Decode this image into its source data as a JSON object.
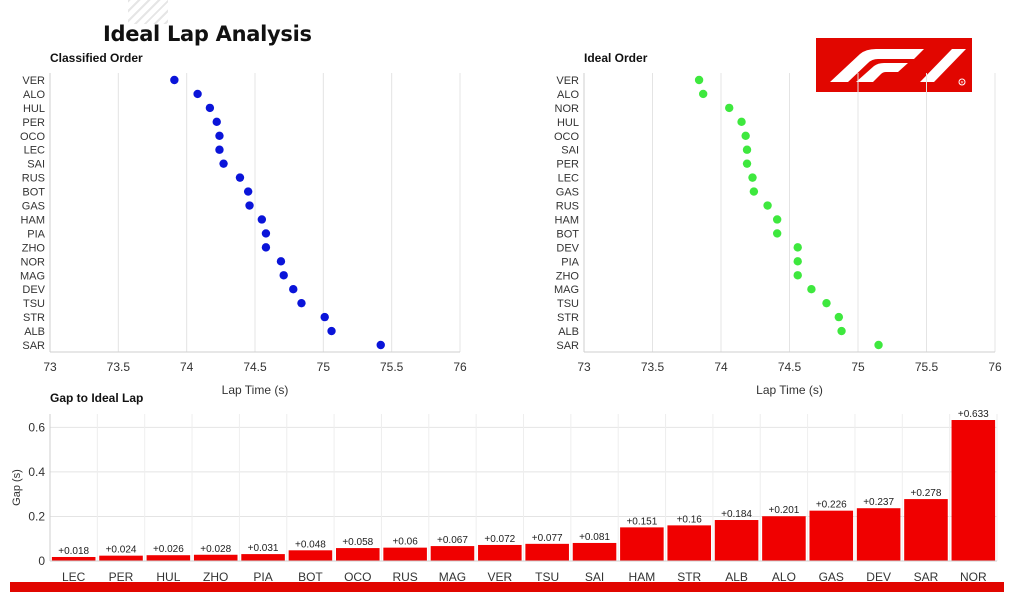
{
  "page": {
    "title": "Ideal Lap Analysis"
  },
  "colors": {
    "classified_dots": "#0a14d9",
    "ideal_dots": "#3ee83e",
    "bars": "#f00000",
    "accent": "#e10600"
  },
  "logo": {
    "icon": "f1-logo-icon"
  },
  "chart_data": [
    {
      "id": "classified",
      "type": "scatter",
      "title": "Classified Order",
      "xlabel": "Lap Time (s)",
      "ylabel": "",
      "xlim": [
        73,
        76
      ],
      "xticks": [
        "73",
        "73.5",
        "74",
        "74.5",
        "75",
        "75.5",
        "76"
      ],
      "grid": true,
      "categories": [
        "VER",
        "ALO",
        "HUL",
        "PER",
        "OCO",
        "LEC",
        "SAI",
        "RUS",
        "BOT",
        "GAS",
        "HAM",
        "PIA",
        "ZHO",
        "NOR",
        "MAG",
        "DEV",
        "TSU",
        "STR",
        "ALB",
        "SAR"
      ],
      "values": [
        73.91,
        74.08,
        74.17,
        74.22,
        74.24,
        74.24,
        74.27,
        74.39,
        74.45,
        74.46,
        74.55,
        74.58,
        74.58,
        74.69,
        74.71,
        74.78,
        74.84,
        75.01,
        75.06,
        75.42
      ]
    },
    {
      "id": "ideal",
      "type": "scatter",
      "title": "Ideal Order",
      "xlabel": "Lap Time (s)",
      "ylabel": "",
      "xlim": [
        73,
        76
      ],
      "xticks": [
        "73",
        "73.5",
        "74",
        "74.5",
        "75",
        "75.5",
        "76"
      ],
      "grid": true,
      "categories": [
        "VER",
        "ALO",
        "NOR",
        "HUL",
        "OCO",
        "SAI",
        "PER",
        "LEC",
        "GAS",
        "RUS",
        "HAM",
        "BOT",
        "DEV",
        "PIA",
        "ZHO",
        "MAG",
        "TSU",
        "STR",
        "ALB",
        "SAR"
      ],
      "values": [
        73.84,
        73.87,
        74.06,
        74.15,
        74.18,
        74.19,
        74.19,
        74.23,
        74.24,
        74.34,
        74.41,
        74.41,
        74.56,
        74.56,
        74.56,
        74.66,
        74.77,
        74.86,
        74.88,
        75.15
      ]
    },
    {
      "id": "gap",
      "type": "bar",
      "title": "Gap to Ideal Lap",
      "xlabel": "",
      "ylabel": "Gap (s)",
      "ylim": [
        0,
        0.66
      ],
      "yticks": [
        "0",
        "0.2",
        "0.4",
        "0.6"
      ],
      "grid": true,
      "categories": [
        "LEC",
        "PER",
        "HUL",
        "ZHO",
        "PIA",
        "BOT",
        "OCO",
        "RUS",
        "MAG",
        "VER",
        "TSU",
        "SAI",
        "HAM",
        "STR",
        "ALB",
        "ALO",
        "GAS",
        "DEV",
        "SAR",
        "NOR"
      ],
      "values": [
        0.018,
        0.024,
        0.026,
        0.028,
        0.031,
        0.048,
        0.058,
        0.06,
        0.067,
        0.072,
        0.077,
        0.081,
        0.151,
        0.16,
        0.184,
        0.201,
        0.226,
        0.237,
        0.278,
        0.633
      ],
      "labels": [
        "+0.018",
        "+0.024",
        "+0.026",
        "+0.028",
        "+0.031",
        "+0.048",
        "+0.058",
        "+0.06",
        "+0.067",
        "+0.072",
        "+0.077",
        "+0.081",
        "+0.151",
        "+0.16",
        "+0.184",
        "+0.201",
        "+0.226",
        "+0.237",
        "+0.278",
        "+0.633"
      ]
    }
  ]
}
